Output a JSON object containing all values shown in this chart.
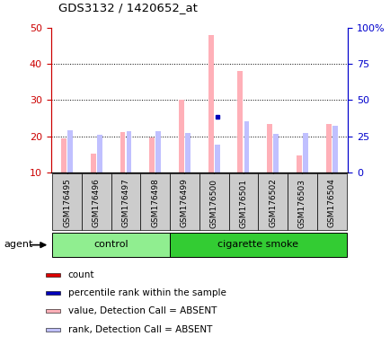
{
  "title": "GDS3132 / 1420652_at",
  "samples": [
    "GSM176495",
    "GSM176496",
    "GSM176497",
    "GSM176498",
    "GSM176499",
    "GSM176500",
    "GSM176501",
    "GSM176502",
    "GSM176503",
    "GSM176504"
  ],
  "groups": [
    "control",
    "control",
    "control",
    "control",
    "cigarette smoke",
    "cigarette smoke",
    "cigarette smoke",
    "cigarette smoke",
    "cigarette smoke",
    "cigarette smoke"
  ],
  "n_control": 4,
  "value_absent": [
    19.5,
    15.3,
    21.2,
    19.7,
    30.2,
    48.0,
    38.0,
    23.5,
    14.8,
    23.5
  ],
  "rank_absent_pct": [
    29.0,
    26.0,
    28.5,
    28.5,
    27.5,
    19.5,
    35.5,
    26.5,
    27.5,
    32.0
  ],
  "percentile_rank_pct": [
    null,
    null,
    null,
    null,
    null,
    38.5,
    null,
    null,
    null,
    null
  ],
  "ylim_left": [
    10,
    50
  ],
  "ylim_right": [
    0,
    100
  ],
  "yticks_left": [
    10,
    20,
    30,
    40,
    50
  ],
  "ytick_labels_left": [
    "10",
    "20",
    "30",
    "40",
    "50"
  ],
  "ytick_labels_right": [
    "0",
    "25",
    "50",
    "75",
    "100%"
  ],
  "bar_width": 0.18,
  "color_value_absent": "#FFB0B8",
  "color_rank_absent": "#C0C0FF",
  "color_count": "#DD0000",
  "color_percentile": "#0000BB",
  "control_color": "#90EE90",
  "smoke_color": "#33CC33",
  "sample_bg_color": "#CCCCCC",
  "plot_bg": "#FFFFFF",
  "axis_left_color": "#CC0000",
  "axis_right_color": "#0000CC",
  "grid_color": "#000000",
  "fig_width": 4.35,
  "fig_height": 3.84
}
